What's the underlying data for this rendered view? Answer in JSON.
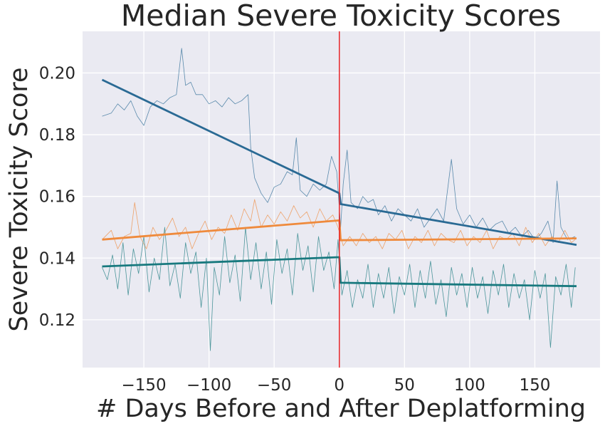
{
  "chart_data": {
    "type": "line",
    "title": "Median Severe Toxicity Scores",
    "xlabel": "# Days Before and After Deplatforming",
    "ylabel": "Severe Toxicity Score",
    "xlim": [
      -197,
      200
    ],
    "ylim": [
      0.1045,
      0.2135
    ],
    "xticks": [
      -150,
      -100,
      -50,
      0,
      50,
      100,
      150
    ],
    "xtick_labels": [
      "−150",
      "−100",
      "−50",
      "0",
      "50",
      "100",
      "150"
    ],
    "yticks": [
      0.12,
      0.14,
      0.16,
      0.18,
      0.2
    ],
    "ytick_labels": [
      "0.12",
      "0.14",
      "0.16",
      "0.18",
      "0.20"
    ],
    "grid": true,
    "background": "#eaeaf2",
    "event_line": {
      "x": 0,
      "color": "#e8282b"
    },
    "series": [
      {
        "color": "#2a6a94",
        "raw": [
          [
            -182,
            0.186
          ],
          [
            -175,
            0.187
          ],
          [
            -170,
            0.19
          ],
          [
            -165,
            0.188
          ],
          [
            -160,
            0.191
          ],
          [
            -155,
            0.186
          ],
          [
            -150,
            0.183
          ],
          [
            -145,
            0.189
          ],
          [
            -140,
            0.191
          ],
          [
            -135,
            0.19
          ],
          [
            -130,
            0.192
          ],
          [
            -125,
            0.193
          ],
          [
            -121,
            0.208
          ],
          [
            -118,
            0.196
          ],
          [
            -114,
            0.197
          ],
          [
            -110,
            0.193
          ],
          [
            -105,
            0.193
          ],
          [
            -100,
            0.19
          ],
          [
            -95,
            0.191
          ],
          [
            -90,
            0.189
          ],
          [
            -85,
            0.192
          ],
          [
            -80,
            0.19
          ],
          [
            -75,
            0.191
          ],
          [
            -70,
            0.193
          ],
          [
            -68,
            0.176
          ],
          [
            -65,
            0.166
          ],
          [
            -60,
            0.161
          ],
          [
            -55,
            0.158
          ],
          [
            -50,
            0.163
          ],
          [
            -45,
            0.164
          ],
          [
            -40,
            0.168
          ],
          [
            -36,
            0.167
          ],
          [
            -33,
            0.179
          ],
          [
            -30,
            0.162
          ],
          [
            -25,
            0.16
          ],
          [
            -20,
            0.164
          ],
          [
            -15,
            0.162
          ],
          [
            -10,
            0.164
          ],
          [
            -6,
            0.173
          ],
          [
            -2,
            0.168
          ],
          [
            1,
            0.15
          ],
          [
            3,
            0.164
          ],
          [
            6,
            0.175
          ],
          [
            9,
            0.158
          ],
          [
            14,
            0.156
          ],
          [
            18,
            0.16
          ],
          [
            22,
            0.158
          ],
          [
            26,
            0.159
          ],
          [
            30,
            0.154
          ],
          [
            35,
            0.157
          ],
          [
            40,
            0.152
          ],
          [
            45,
            0.156
          ],
          [
            50,
            0.154
          ],
          [
            55,
            0.152
          ],
          [
            60,
            0.156
          ],
          [
            65,
            0.15
          ],
          [
            70,
            0.153
          ],
          [
            75,
            0.156
          ],
          [
            80,
            0.152
          ],
          [
            86,
            0.172
          ],
          [
            90,
            0.156
          ],
          [
            95,
            0.151
          ],
          [
            100,
            0.154
          ],
          [
            105,
            0.15
          ],
          [
            110,
            0.153
          ],
          [
            115,
            0.149
          ],
          [
            120,
            0.151
          ],
          [
            125,
            0.152
          ],
          [
            130,
            0.148
          ],
          [
            135,
            0.15
          ],
          [
            140,
            0.147
          ],
          [
            145,
            0.149
          ],
          [
            150,
            0.146
          ],
          [
            155,
            0.148
          ],
          [
            160,
            0.152
          ],
          [
            164,
            0.145
          ],
          [
            167,
            0.165
          ],
          [
            170,
            0.15
          ],
          [
            175,
            0.146
          ],
          [
            181,
            0.147
          ]
        ],
        "trend": [
          [
            -182,
            0.1978
          ],
          [
            0,
            0.161
          ],
          [
            1,
            0.1575
          ],
          [
            182,
            0.1443
          ]
        ]
      },
      {
        "color": "#ef8a3c",
        "raw": [
          [
            -182,
            0.146
          ],
          [
            -175,
            0.149
          ],
          [
            -170,
            0.143
          ],
          [
            -165,
            0.147
          ],
          [
            -160,
            0.148
          ],
          [
            -157,
            0.158
          ],
          [
            -153,
            0.147
          ],
          [
            -148,
            0.143
          ],
          [
            -143,
            0.15
          ],
          [
            -138,
            0.146
          ],
          [
            -133,
            0.149
          ],
          [
            -128,
            0.153
          ],
          [
            -123,
            0.147
          ],
          [
            -118,
            0.15
          ],
          [
            -113,
            0.143
          ],
          [
            -108,
            0.148
          ],
          [
            -103,
            0.152
          ],
          [
            -98,
            0.146
          ],
          [
            -93,
            0.15
          ],
          [
            -88,
            0.148
          ],
          [
            -83,
            0.154
          ],
          [
            -78,
            0.149
          ],
          [
            -73,
            0.156
          ],
          [
            -68,
            0.152
          ],
          [
            -65,
            0.159
          ],
          [
            -60,
            0.15
          ],
          [
            -55,
            0.154
          ],
          [
            -50,
            0.151
          ],
          [
            -45,
            0.155
          ],
          [
            -40,
            0.152
          ],
          [
            -35,
            0.157
          ],
          [
            -30,
            0.153
          ],
          [
            -25,
            0.155
          ],
          [
            -20,
            0.15
          ],
          [
            -15,
            0.156
          ],
          [
            -10,
            0.152
          ],
          [
            -5,
            0.154
          ],
          [
            -1,
            0.15
          ],
          [
            3,
            0.144
          ],
          [
            8,
            0.147
          ],
          [
            13,
            0.144
          ],
          [
            18,
            0.148
          ],
          [
            23,
            0.145
          ],
          [
            28,
            0.147
          ],
          [
            33,
            0.143
          ],
          [
            38,
            0.148
          ],
          [
            43,
            0.146
          ],
          [
            48,
            0.149
          ],
          [
            53,
            0.143
          ],
          [
            58,
            0.147
          ],
          [
            63,
            0.145
          ],
          [
            68,
            0.149
          ],
          [
            73,
            0.144
          ],
          [
            78,
            0.148
          ],
          [
            83,
            0.146
          ],
          [
            88,
            0.145
          ],
          [
            93,
            0.149
          ],
          [
            98,
            0.144
          ],
          [
            103,
            0.147
          ],
          [
            108,
            0.145
          ],
          [
            113,
            0.149
          ],
          [
            118,
            0.143
          ],
          [
            123,
            0.147
          ],
          [
            128,
            0.146
          ],
          [
            133,
            0.148
          ],
          [
            138,
            0.144
          ],
          [
            143,
            0.15
          ],
          [
            148,
            0.145
          ],
          [
            153,
            0.148
          ],
          [
            158,
            0.144
          ],
          [
            163,
            0.147
          ],
          [
            168,
            0.145
          ],
          [
            173,
            0.149
          ],
          [
            178,
            0.145
          ],
          [
            181,
            0.146
          ]
        ],
        "trend": [
          [
            -182,
            0.146
          ],
          [
            0,
            0.1522
          ],
          [
            1,
            0.1458
          ],
          [
            182,
            0.1464
          ]
        ]
      },
      {
        "color": "#18797e",
        "raw": [
          [
            -182,
            0.137
          ],
          [
            -178,
            0.133
          ],
          [
            -174,
            0.141
          ],
          [
            -170,
            0.13
          ],
          [
            -166,
            0.145
          ],
          [
            -162,
            0.128
          ],
          [
            -158,
            0.143
          ],
          [
            -154,
            0.135
          ],
          [
            -150,
            0.147
          ],
          [
            -146,
            0.129
          ],
          [
            -142,
            0.14
          ],
          [
            -138,
            0.133
          ],
          [
            -134,
            0.15
          ],
          [
            -130,
            0.131
          ],
          [
            -126,
            0.138
          ],
          [
            -122,
            0.127
          ],
          [
            -118,
            0.145
          ],
          [
            -114,
            0.135
          ],
          [
            -110,
            0.142
          ],
          [
            -106,
            0.124
          ],
          [
            -102,
            0.14
          ],
          [
            -99,
            0.11
          ],
          [
            -96,
            0.137
          ],
          [
            -92,
            0.128
          ],
          [
            -88,
            0.147
          ],
          [
            -84,
            0.132
          ],
          [
            -80,
            0.141
          ],
          [
            -76,
            0.126
          ],
          [
            -72,
            0.15
          ],
          [
            -68,
            0.133
          ],
          [
            -64,
            0.145
          ],
          [
            -60,
            0.13
          ],
          [
            -56,
            0.142
          ],
          [
            -52,
            0.125
          ],
          [
            -48,
            0.146
          ],
          [
            -44,
            0.135
          ],
          [
            -40,
            0.143
          ],
          [
            -36,
            0.128
          ],
          [
            -32,
            0.148
          ],
          [
            -28,
            0.136
          ],
          [
            -24,
            0.144
          ],
          [
            -20,
            0.129
          ],
          [
            -16,
            0.147
          ],
          [
            -12,
            0.136
          ],
          [
            -8,
            0.142
          ],
          [
            -4,
            0.13
          ],
          [
            -1,
            0.146
          ],
          [
            2,
            0.128
          ],
          [
            6,
            0.136
          ],
          [
            10,
            0.124
          ],
          [
            14,
            0.133
          ],
          [
            18,
            0.127
          ],
          [
            22,
            0.138
          ],
          [
            26,
            0.124
          ],
          [
            30,
            0.135
          ],
          [
            34,
            0.127
          ],
          [
            38,
            0.137
          ],
          [
            42,
            0.122
          ],
          [
            46,
            0.134
          ],
          [
            50,
            0.128
          ],
          [
            54,
            0.138
          ],
          [
            58,
            0.124
          ],
          [
            62,
            0.136
          ],
          [
            66,
            0.127
          ],
          [
            70,
            0.139
          ],
          [
            74,
            0.125
          ],
          [
            78,
            0.133
          ],
          [
            82,
            0.121
          ],
          [
            86,
            0.137
          ],
          [
            90,
            0.128
          ],
          [
            94,
            0.135
          ],
          [
            98,
            0.124
          ],
          [
            102,
            0.137
          ],
          [
            106,
            0.127
          ],
          [
            110,
            0.134
          ],
          [
            114,
            0.122
          ],
          [
            118,
            0.136
          ],
          [
            122,
            0.128
          ],
          [
            126,
            0.138
          ],
          [
            130,
            0.124
          ],
          [
            134,
            0.135
          ],
          [
            138,
            0.127
          ],
          [
            142,
            0.133
          ],
          [
            146,
            0.12
          ],
          [
            150,
            0.136
          ],
          [
            154,
            0.127
          ],
          [
            158,
            0.135
          ],
          [
            162,
            0.111
          ],
          [
            166,
            0.134
          ],
          [
            170,
            0.128
          ],
          [
            174,
            0.138
          ],
          [
            178,
            0.124
          ],
          [
            181,
            0.137
          ]
        ],
        "trend": [
          [
            -182,
            0.1373
          ],
          [
            0,
            0.1403
          ],
          [
            1,
            0.132
          ],
          [
            182,
            0.1309
          ]
        ]
      }
    ]
  }
}
